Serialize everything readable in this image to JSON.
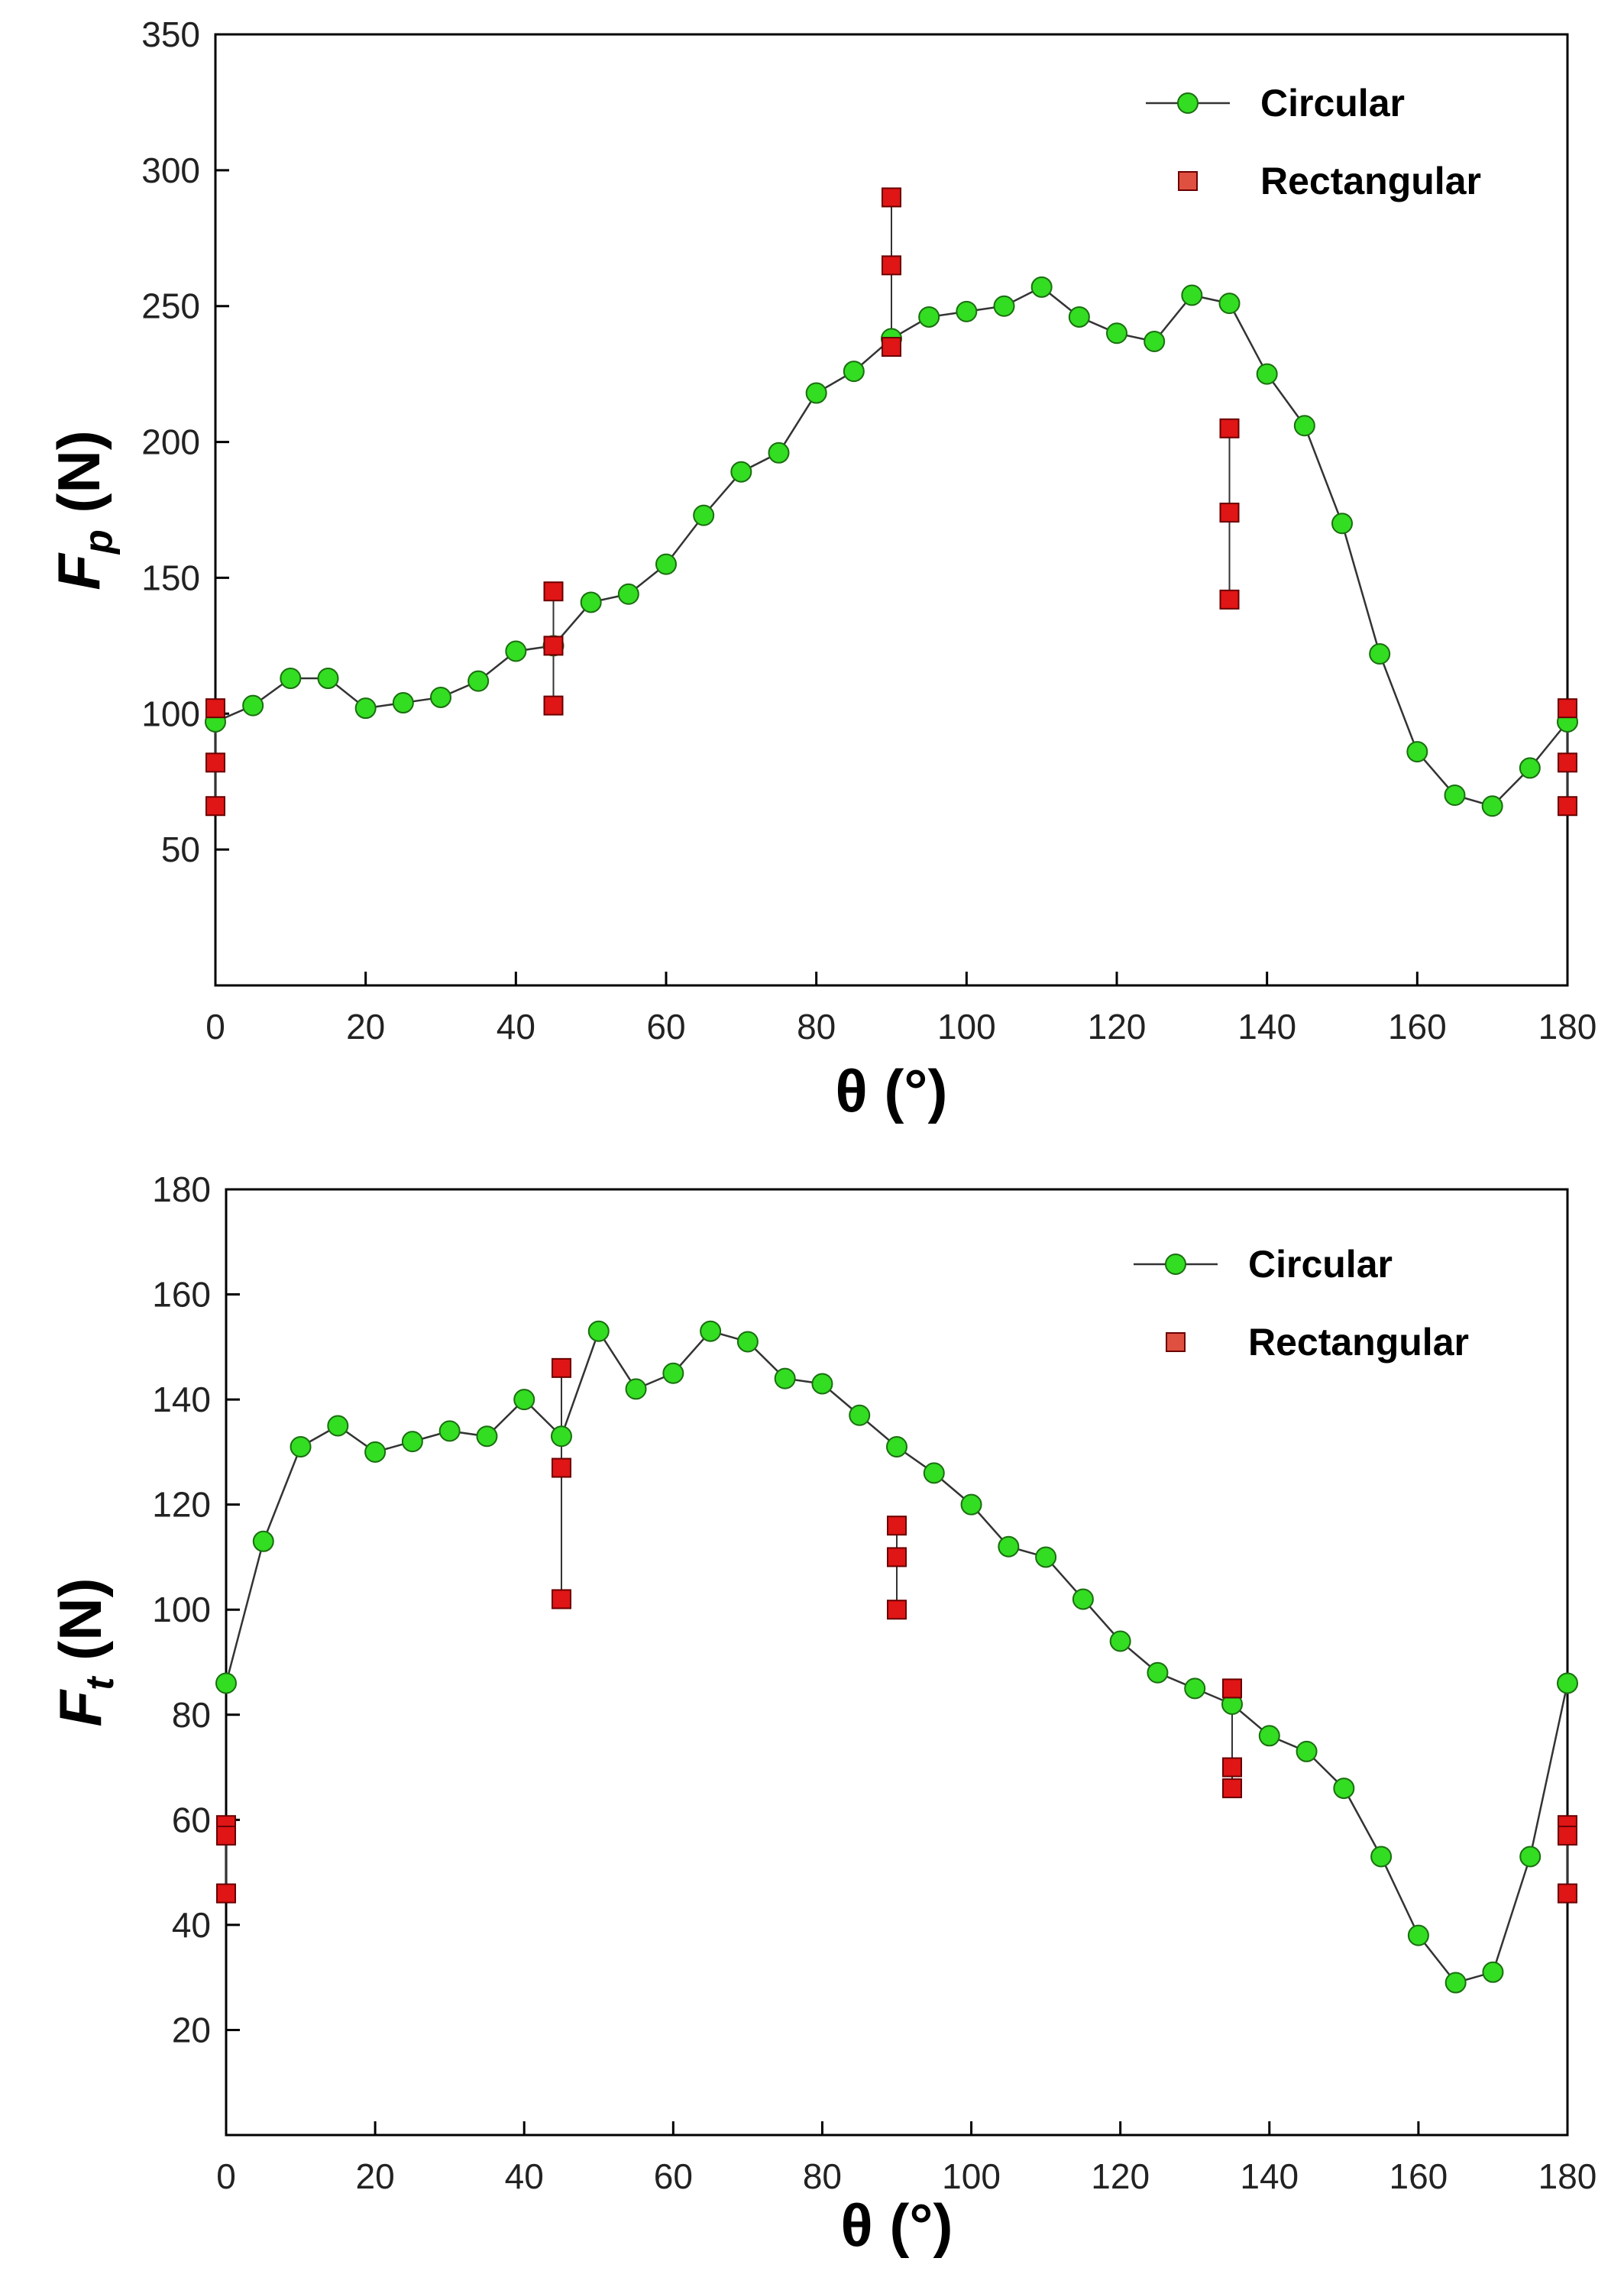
{
  "colors": {
    "circular_fill": "#33dd22",
    "circular_stroke": "#1a6e10",
    "rectangular_fill": "#e01515",
    "rectangular_stroke": "#6a0000",
    "line": "#333333",
    "axis": "#000000"
  },
  "chart_data": [
    {
      "type": "scatter",
      "xlabel": "θ (°)",
      "ylabel": {
        "base": "F",
        "sub": "p",
        "unit": "(N)"
      },
      "xlim": [
        0,
        180
      ],
      "ylim": [
        0,
        350
      ],
      "xticks": [
        0,
        20,
        40,
        60,
        80,
        100,
        120,
        140,
        160,
        180
      ],
      "yticks": [
        50,
        100,
        150,
        200,
        250,
        300,
        350
      ],
      "grid": false,
      "legend_position": "top-right",
      "series": [
        {
          "name": "Circular",
          "marker": "circle",
          "line": true,
          "x": [
            0,
            5,
            10,
            15,
            20,
            25,
            30,
            35,
            40,
            45,
            50,
            55,
            60,
            65,
            70,
            75,
            80,
            85,
            90,
            95,
            100,
            105,
            110,
            115,
            120,
            125,
            130,
            135,
            140,
            145,
            150,
            155,
            160,
            165,
            170,
            175,
            180
          ],
          "y": [
            97,
            103,
            113,
            113,
            102,
            104,
            106,
            112,
            123,
            125,
            141,
            144,
            155,
            173,
            189,
            196,
            218,
            226,
            238,
            246,
            248,
            250,
            257,
            246,
            240,
            237,
            254,
            251,
            225,
            206,
            170,
            122,
            86,
            70,
            66,
            80,
            97
          ]
        },
        {
          "name": "Rectangular",
          "marker": "square",
          "line": false,
          "error_bars": true,
          "groups": [
            {
              "x": 0,
              "y": [
                102,
                82,
                66
              ]
            },
            {
              "x": 45,
              "y": [
                145,
                125,
                103
              ]
            },
            {
              "x": 90,
              "y": [
                290,
                265,
                235
              ]
            },
            {
              "x": 135,
              "y": [
                205,
                174,
                142
              ]
            },
            {
              "x": 180,
              "y": [
                102,
                82,
                66
              ]
            }
          ]
        }
      ]
    },
    {
      "type": "scatter",
      "xlabel": "θ (°)",
      "ylabel": {
        "base": "F",
        "sub": "t",
        "unit": "(N)"
      },
      "xlim": [
        0,
        180
      ],
      "ylim": [
        0,
        180
      ],
      "xticks": [
        0,
        20,
        40,
        60,
        80,
        100,
        120,
        140,
        160,
        180
      ],
      "yticks": [
        20,
        40,
        60,
        80,
        100,
        120,
        140,
        160,
        180
      ],
      "grid": false,
      "legend_position": "top-right",
      "series": [
        {
          "name": "Circular",
          "marker": "circle",
          "line": true,
          "x": [
            0,
            5,
            10,
            15,
            20,
            25,
            30,
            35,
            40,
            45,
            50,
            55,
            60,
            65,
            70,
            75,
            80,
            85,
            90,
            95,
            100,
            105,
            110,
            115,
            120,
            125,
            130,
            135,
            140,
            145,
            150,
            155,
            160,
            165,
            170,
            175,
            180
          ],
          "y": [
            86,
            113,
            131,
            135,
            130,
            132,
            134,
            133,
            140,
            133,
            153,
            142,
            145,
            153,
            151,
            144,
            143,
            137,
            131,
            126,
            120,
            112,
            110,
            102,
            94,
            88,
            85,
            82,
            76,
            73,
            66,
            53,
            38,
            29,
            31,
            53,
            86
          ]
        },
        {
          "name": "Rectangular",
          "marker": "square",
          "line": false,
          "error_bars": true,
          "groups": [
            {
              "x": 0,
              "y": [
                59,
                57,
                46
              ]
            },
            {
              "x": 45,
              "y": [
                146,
                127,
                102
              ]
            },
            {
              "x": 90,
              "y": [
                116,
                110,
                100
              ]
            },
            {
              "x": 135,
              "y": [
                85,
                70,
                66
              ]
            },
            {
              "x": 180,
              "y": [
                59,
                57,
                46
              ]
            }
          ]
        }
      ]
    }
  ]
}
